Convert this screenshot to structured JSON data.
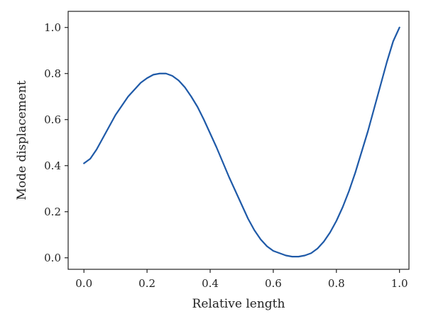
{
  "chart_data": {
    "type": "line",
    "title": "",
    "xlabel": "Relative length",
    "ylabel": "Mode displacement",
    "xlim": [
      -0.05,
      1.03
    ],
    "ylim": [
      -0.05,
      1.07
    ],
    "xticks": [
      0.0,
      0.2,
      0.4,
      0.6,
      0.8,
      1.0
    ],
    "xtick_labels": [
      "0.0",
      "0.2",
      "0.4",
      "0.6",
      "0.8",
      "1.0"
    ],
    "yticks": [
      0.0,
      0.2,
      0.4,
      0.6,
      0.8,
      1.0
    ],
    "ytick_labels": [
      "0.0",
      "0.2",
      "0.4",
      "0.6",
      "0.8",
      "1.0"
    ],
    "grid": false,
    "series": [
      {
        "color": "#1f5aa8",
        "x": [
          0.0,
          0.02,
          0.04,
          0.06,
          0.08,
          0.1,
          0.12,
          0.14,
          0.16,
          0.18,
          0.2,
          0.22,
          0.24,
          0.26,
          0.28,
          0.3,
          0.32,
          0.34,
          0.36,
          0.38,
          0.4,
          0.42,
          0.44,
          0.46,
          0.48,
          0.5,
          0.52,
          0.54,
          0.56,
          0.58,
          0.6,
          0.62,
          0.64,
          0.66,
          0.68,
          0.7,
          0.72,
          0.74,
          0.76,
          0.78,
          0.8,
          0.82,
          0.84,
          0.86,
          0.88,
          0.9,
          0.92,
          0.94,
          0.96,
          0.98,
          1.0
        ],
        "y": [
          0.41,
          0.43,
          0.47,
          0.52,
          0.57,
          0.62,
          0.66,
          0.7,
          0.73,
          0.76,
          0.78,
          0.795,
          0.8,
          0.8,
          0.79,
          0.77,
          0.74,
          0.7,
          0.655,
          0.6,
          0.54,
          0.48,
          0.415,
          0.35,
          0.29,
          0.23,
          0.17,
          0.12,
          0.08,
          0.05,
          0.03,
          0.02,
          0.01,
          0.005,
          0.005,
          0.01,
          0.02,
          0.04,
          0.07,
          0.11,
          0.16,
          0.22,
          0.29,
          0.37,
          0.46,
          0.55,
          0.65,
          0.75,
          0.85,
          0.94,
          1.0
        ]
      }
    ]
  }
}
